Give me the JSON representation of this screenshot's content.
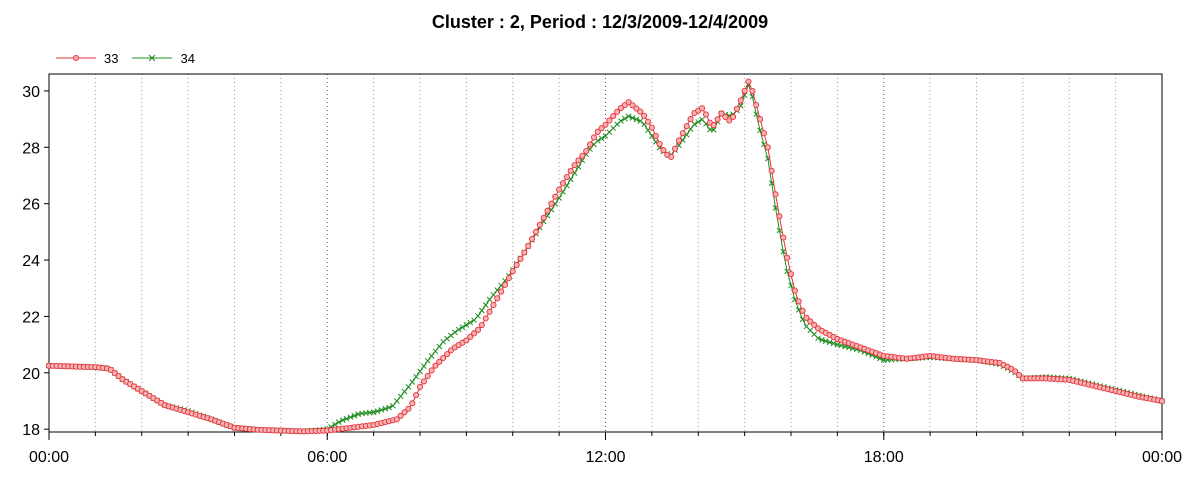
{
  "chart_data": {
    "type": "line",
    "title": "Cluster : 2, Period : 12/3/2009-12/4/2009",
    "xlabel": "",
    "ylabel": "",
    "x_range_hours": [
      0,
      24
    ],
    "ylim": [
      17.9,
      30.6
    ],
    "x_ticks": [
      {
        "hour": 0,
        "label": "00:00"
      },
      {
        "hour": 6,
        "label": "06:00"
      },
      {
        "hour": 12,
        "label": "12:00"
      },
      {
        "hour": 18,
        "label": "18:00"
      },
      {
        "hour": 24,
        "label": "00:00"
      }
    ],
    "y_ticks": [
      18,
      20,
      22,
      24,
      26,
      28,
      30
    ],
    "grid": true,
    "legend_position": "top-left",
    "series": [
      {
        "name": "33",
        "color": "#e8303a",
        "marker": "circle",
        "points": [
          [
            0.0,
            20.25
          ],
          [
            1.0,
            20.2
          ],
          [
            1.3,
            20.15
          ],
          [
            1.6,
            19.75
          ],
          [
            2.0,
            19.35
          ],
          [
            2.5,
            18.85
          ],
          [
            3.0,
            18.6
          ],
          [
            3.5,
            18.35
          ],
          [
            4.0,
            18.05
          ],
          [
            4.5,
            17.98
          ],
          [
            5.0,
            17.95
          ],
          [
            5.5,
            17.92
          ],
          [
            6.0,
            17.95
          ],
          [
            6.5,
            18.05
          ],
          [
            7.0,
            18.15
          ],
          [
            7.5,
            18.35
          ],
          [
            7.8,
            18.8
          ],
          [
            8.0,
            19.5
          ],
          [
            8.3,
            20.2
          ],
          [
            8.7,
            20.85
          ],
          [
            9.0,
            21.15
          ],
          [
            9.3,
            21.6
          ],
          [
            9.6,
            22.45
          ],
          [
            10.0,
            23.6
          ],
          [
            10.3,
            24.4
          ],
          [
            10.6,
            25.3
          ],
          [
            11.0,
            26.5
          ],
          [
            11.3,
            27.3
          ],
          [
            11.6,
            27.9
          ],
          [
            11.8,
            28.5
          ],
          [
            12.0,
            28.8
          ],
          [
            12.3,
            29.35
          ],
          [
            12.5,
            29.6
          ],
          [
            12.8,
            29.2
          ],
          [
            13.0,
            28.7
          ],
          [
            13.2,
            28.0
          ],
          [
            13.4,
            27.6
          ],
          [
            13.6,
            28.3
          ],
          [
            13.9,
            29.2
          ],
          [
            14.1,
            29.4
          ],
          [
            14.3,
            28.7
          ],
          [
            14.5,
            29.2
          ],
          [
            14.7,
            28.9
          ],
          [
            14.9,
            29.6
          ],
          [
            15.1,
            30.4
          ],
          [
            15.3,
            29.2
          ],
          [
            15.5,
            28.0
          ],
          [
            15.7,
            26.0
          ],
          [
            15.9,
            24.2
          ],
          [
            16.1,
            22.8
          ],
          [
            16.3,
            22.0
          ],
          [
            16.6,
            21.55
          ],
          [
            17.0,
            21.2
          ],
          [
            17.5,
            20.9
          ],
          [
            18.0,
            20.6
          ],
          [
            18.5,
            20.5
          ],
          [
            19.0,
            20.6
          ],
          [
            19.5,
            20.5
          ],
          [
            20.0,
            20.45
          ],
          [
            20.5,
            20.35
          ],
          [
            20.8,
            20.1
          ],
          [
            21.0,
            19.8
          ],
          [
            21.5,
            19.8
          ],
          [
            22.0,
            19.75
          ],
          [
            22.5,
            19.55
          ],
          [
            23.0,
            19.35
          ],
          [
            23.5,
            19.15
          ],
          [
            24.0,
            19.0
          ]
        ]
      },
      {
        "name": "34",
        "color": "#1e8c1e",
        "marker": "x",
        "points": [
          [
            0.0,
            20.25
          ],
          [
            1.0,
            20.2
          ],
          [
            1.3,
            20.15
          ],
          [
            1.6,
            19.75
          ],
          [
            2.0,
            19.35
          ],
          [
            2.5,
            18.85
          ],
          [
            3.0,
            18.65
          ],
          [
            3.5,
            18.35
          ],
          [
            4.0,
            18.05
          ],
          [
            4.5,
            17.98
          ],
          [
            5.0,
            17.95
          ],
          [
            5.5,
            17.92
          ],
          [
            6.0,
            18.0
          ],
          [
            6.3,
            18.3
          ],
          [
            6.7,
            18.55
          ],
          [
            7.0,
            18.6
          ],
          [
            7.4,
            18.8
          ],
          [
            7.8,
            19.6
          ],
          [
            8.2,
            20.5
          ],
          [
            8.5,
            21.1
          ],
          [
            8.8,
            21.5
          ],
          [
            9.2,
            21.9
          ],
          [
            9.5,
            22.6
          ],
          [
            9.9,
            23.4
          ],
          [
            10.3,
            24.4
          ],
          [
            10.6,
            25.2
          ],
          [
            11.0,
            26.2
          ],
          [
            11.3,
            27.0
          ],
          [
            11.6,
            27.8
          ],
          [
            11.8,
            28.2
          ],
          [
            12.0,
            28.4
          ],
          [
            12.3,
            28.9
          ],
          [
            12.5,
            29.1
          ],
          [
            12.8,
            28.9
          ],
          [
            13.0,
            28.4
          ],
          [
            13.2,
            27.9
          ],
          [
            13.4,
            27.7
          ],
          [
            13.6,
            28.1
          ],
          [
            13.9,
            28.8
          ],
          [
            14.1,
            29.0
          ],
          [
            14.3,
            28.5
          ],
          [
            14.5,
            29.2
          ],
          [
            14.7,
            29.1
          ],
          [
            14.9,
            29.4
          ],
          [
            15.1,
            30.3
          ],
          [
            15.3,
            28.8
          ],
          [
            15.5,
            27.6
          ],
          [
            15.7,
            25.5
          ],
          [
            15.9,
            23.7
          ],
          [
            16.1,
            22.5
          ],
          [
            16.3,
            21.7
          ],
          [
            16.6,
            21.2
          ],
          [
            17.0,
            21.0
          ],
          [
            17.5,
            20.8
          ],
          [
            18.0,
            20.45
          ],
          [
            18.5,
            20.5
          ],
          [
            19.0,
            20.55
          ],
          [
            19.5,
            20.5
          ],
          [
            20.0,
            20.45
          ],
          [
            20.5,
            20.3
          ],
          [
            20.8,
            20.05
          ],
          [
            21.0,
            19.8
          ],
          [
            21.5,
            19.85
          ],
          [
            22.0,
            19.8
          ],
          [
            22.5,
            19.6
          ],
          [
            23.0,
            19.4
          ],
          [
            23.5,
            19.2
          ],
          [
            24.0,
            19.0
          ]
        ]
      }
    ]
  }
}
